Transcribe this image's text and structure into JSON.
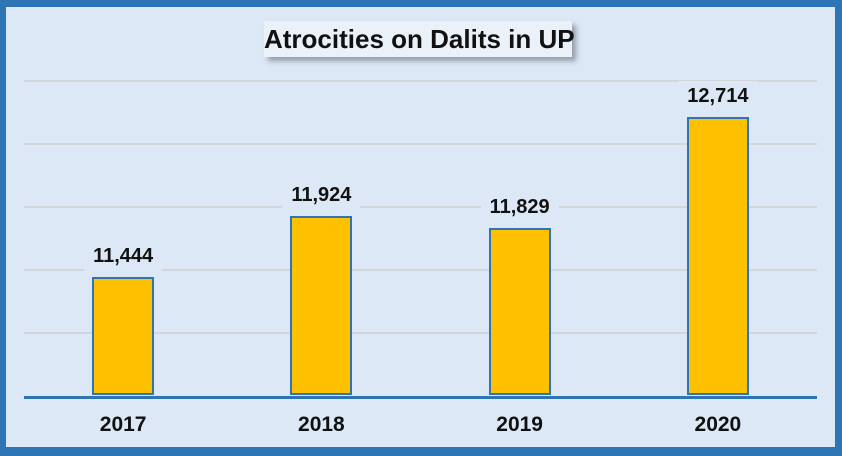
{
  "chart_data": {
    "type": "bar",
    "title": "Atrocities on Dalits in UP",
    "categories": [
      "2017",
      "2018",
      "2019",
      "2020"
    ],
    "values": [
      11444,
      11924,
      11829,
      12714
    ],
    "value_labels": [
      "11,444",
      "11,924",
      "11,829",
      "12,714"
    ],
    "xlabel": "",
    "ylabel": "",
    "ylim": [
      10500,
      13150
    ],
    "gridline_values": [
      11000,
      11500,
      12000,
      12500,
      13000
    ],
    "grid": true,
    "legend": "none",
    "y_axis_tick_labels_visible": false
  },
  "colors": {
    "background": "#dce8f5",
    "frame_border": "#2e75b6",
    "title_box_background": "#eaf1f9",
    "gridline": "#d2d5d9",
    "axis_line": "#2e75b6",
    "bar_fill": "#ffc000",
    "bar_border": "#2e75b6",
    "text": "#111111"
  }
}
